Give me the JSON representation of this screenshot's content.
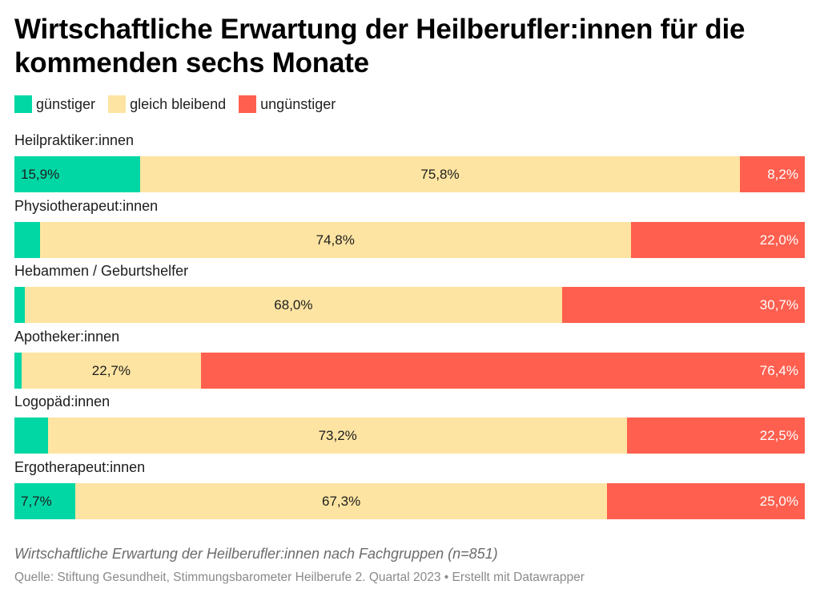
{
  "header": {
    "title": "Wirtschaftliche Erwartung der Heilberufler:innen für die kommenden sechs Monate"
  },
  "legend": [
    {
      "label": "günstiger",
      "color": "#00d7a5"
    },
    {
      "label": "gleich bleibend",
      "color": "#fde4a2"
    },
    {
      "label": "ungünstiger",
      "color": "#fe5f4f"
    }
  ],
  "chart_data": {
    "type": "bar",
    "orientation": "horizontal",
    "stacked": "100%",
    "categories": [
      "Heilpraktiker:innen",
      "Physiotherapeut:innen",
      "Hebammen / Geburtshelfer",
      "Apotheker:innen",
      "Logopäd:innen",
      "Ergotherapeut:innen"
    ],
    "series": [
      {
        "name": "günstiger",
        "color": "#00d7a5",
        "values": [
          15.9,
          3.2,
          1.3,
          0.9,
          4.3,
          7.7
        ],
        "labels": [
          "15,9%",
          "",
          "",
          "",
          "",
          "7,7%"
        ]
      },
      {
        "name": "gleich bleibend",
        "color": "#fde4a2",
        "values": [
          75.8,
          74.8,
          68.0,
          22.7,
          73.2,
          67.3
        ],
        "labels": [
          "75,8%",
          "74,8%",
          "68,0%",
          "22,7%",
          "73,2%",
          "67,3%"
        ]
      },
      {
        "name": "ungünstiger",
        "color": "#fe5f4f",
        "values": [
          8.2,
          22.0,
          30.7,
          76.4,
          22.5,
          25.0
        ],
        "labels": [
          "8,2%",
          "22,0%",
          "30,7%",
          "76,4%",
          "22,5%",
          "25,0%"
        ]
      }
    ],
    "legend_position": "top-left",
    "grid": false
  },
  "footer": {
    "caption": "Wirtschaftliche Erwartung der Heilberufler:innen nach Fachgruppen (n=851)",
    "source": "Quelle: Stiftung Gesundheit, Stimmungsbarometer Heilberufe 2. Quartal 2023 • Erstellt mit Datawrapper"
  }
}
